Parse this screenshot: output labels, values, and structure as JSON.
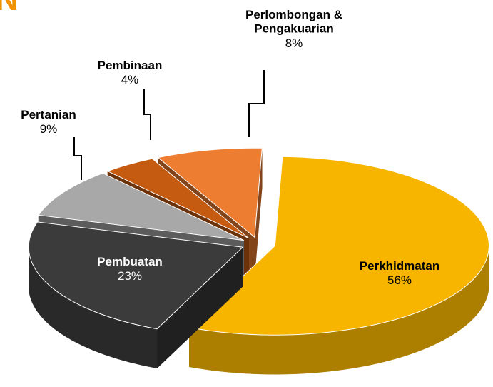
{
  "chart_data": {
    "type": "pie3d",
    "title": "N",
    "categories": [
      "Perkhidmatan",
      "Pembuatan",
      "Pertanian",
      "Pembinaan",
      "Perlombongan &\nPengakuarian"
    ],
    "values": [
      56,
      23,
      9,
      4,
      8
    ],
    "value_labels": [
      "56%",
      "23%",
      "9%",
      "4%",
      "8%"
    ],
    "colors": [
      "#f7b500",
      "#3b3b3b",
      "#a8a8a8",
      "#c55a11",
      "#ed7d31"
    ]
  }
}
